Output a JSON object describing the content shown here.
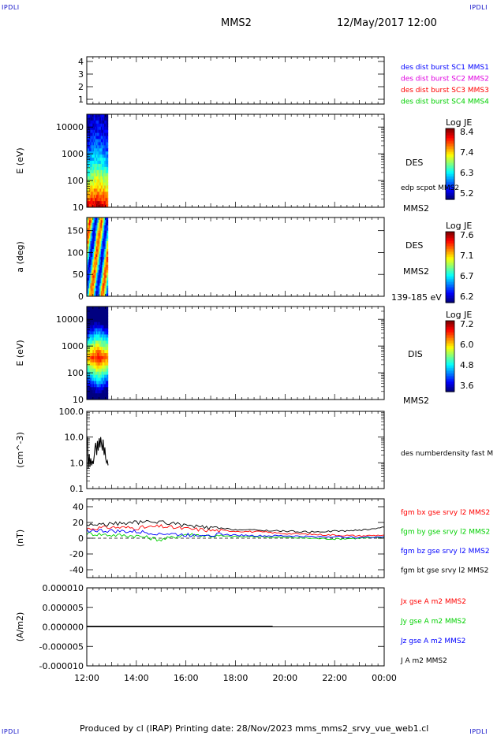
{
  "corners": {
    "top_left": "IPDLI",
    "top_right": "IPDLI",
    "bottom_left": "IPDLI",
    "bottom_right": "IPDLI"
  },
  "header": {
    "title": "MMS2",
    "date": "12/May/2017 12:00"
  },
  "footer": {
    "text": "Produced by cl (IRAP)   Printing date: 28/Nov/2023   mms_mms2_srvy_vue_web1.cl"
  },
  "colors": {
    "blue": "#0000ff",
    "magenta": "#e000e0",
    "red": "#ff0000",
    "green": "#00d000",
    "black": "#000000"
  },
  "chart_data": [
    {
      "type": "line",
      "panel": "availability",
      "yticks": [
        "1",
        "2",
        "3",
        "4"
      ],
      "legend": [
        {
          "text": "des dist burst SC1 MMS1",
          "color": "#0000ff"
        },
        {
          "text": "des dist burst SC2 MMS2",
          "color": "#e000e0"
        },
        {
          "text": "des dist burst SC3 MMS3",
          "color": "#ff0000"
        },
        {
          "text": "des dist burst SC4 MMS4",
          "color": "#00d000"
        }
      ]
    },
    {
      "type": "heatmap",
      "panel": "des_energy",
      "ylabel": "E (eV)",
      "scale": "log",
      "ylim": [
        10,
        30000
      ],
      "yticks": [
        "10",
        "100",
        "1000",
        "10000"
      ],
      "time_range": [
        "12:00",
        "12:50"
      ],
      "right_labels": [
        "DES",
        "edp scpot MMS2",
        "MMS2"
      ],
      "colorbar": {
        "title": "Log JE",
        "ticks": [
          "8.4",
          "7.4",
          "6.3",
          "5.2"
        ]
      }
    },
    {
      "type": "heatmap",
      "panel": "des_pitch",
      "ylabel": "a (deg)",
      "ylim": [
        0,
        180
      ],
      "yticks": [
        "0",
        "50",
        "100",
        "150"
      ],
      "time_range": [
        "12:00",
        "12:50"
      ],
      "right_labels": [
        "DES",
        "MMS2",
        "139-185 eV"
      ],
      "colorbar": {
        "title": "Log JE",
        "ticks": [
          "7.6",
          "7.1",
          "6.7",
          "6.2"
        ]
      }
    },
    {
      "type": "heatmap",
      "panel": "dis_energy",
      "ylabel": "E (eV)",
      "scale": "log",
      "ylim": [
        10,
        30000
      ],
      "yticks": [
        "10",
        "100",
        "1000",
        "10000"
      ],
      "time_range": [
        "12:00",
        "12:50"
      ],
      "right_labels": [
        "DIS",
        "MMS2"
      ],
      "colorbar": {
        "title": "Log JE",
        "ticks": [
          "7.2",
          "6.0",
          "4.8",
          "3.6"
        ]
      }
    },
    {
      "type": "line",
      "panel": "density",
      "ylabel": "(cm^-3)",
      "scale": "log",
      "ylim": [
        0.1,
        100
      ],
      "yticks": [
        "0.1",
        "1.0",
        "10.0",
        "100.0"
      ],
      "series": [
        {
          "name": "des numberdensity fast M",
          "color": "#000000",
          "x": [
            12.0,
            12.03,
            12.06,
            12.1,
            12.13,
            12.16,
            12.2,
            12.23,
            12.26,
            12.3,
            12.33,
            12.36,
            12.4,
            12.43,
            12.46,
            12.5,
            12.53,
            12.56,
            12.6,
            12.63,
            12.66,
            12.7,
            12.73,
            12.76,
            12.8,
            12.83,
            12.86
          ],
          "y": [
            11,
            9,
            0.6,
            2.2,
            0.7,
            1.5,
            0.8,
            1.2,
            0.9,
            1.8,
            4,
            6,
            2,
            7,
            3,
            9,
            4,
            10,
            5,
            3,
            8,
            2,
            4,
            1.5,
            1.0,
            1.2,
            0.8
          ]
        }
      ],
      "legend": [
        {
          "text": "des numberdensity fast M",
          "color": "#000000"
        }
      ]
    },
    {
      "type": "line",
      "panel": "magnetic_field",
      "ylabel": "(nT)",
      "ylim": [
        -50,
        50
      ],
      "yticks": [
        "-40",
        "-20",
        "0",
        "20",
        "40"
      ],
      "series": [
        {
          "name": "fgm bx gse srvy l2 MMS2",
          "color": "#ff0000",
          "x": [
            12,
            13,
            14,
            15,
            16,
            17,
            18,
            19,
            20,
            21,
            22,
            23,
            24
          ],
          "y": [
            12,
            14,
            13,
            15,
            12,
            10,
            9,
            8,
            6,
            5,
            4,
            3,
            4
          ]
        },
        {
          "name": "fgm by gse srvy l2 MMS2",
          "color": "#00d000",
          "x": [
            12,
            13,
            14,
            15,
            16,
            17,
            18,
            19,
            20,
            21,
            22,
            23,
            24
          ],
          "y": [
            6,
            4,
            3,
            -2,
            5,
            3,
            2,
            2,
            1,
            0,
            -1,
            0,
            1
          ]
        },
        {
          "name": "fgm bz gse srvy l2 MMS2",
          "color": "#0000ff",
          "x": [
            12,
            13,
            14,
            15,
            16,
            17,
            18,
            19,
            20,
            21,
            22,
            23,
            24
          ],
          "y": [
            10,
            9,
            8,
            6,
            4,
            5,
            4,
            3,
            3,
            2,
            2,
            1,
            2
          ]
        },
        {
          "name": "fgm bt gse srvy l2 MMS2",
          "color": "#000000",
          "x": [
            12,
            13,
            14,
            15,
            16,
            17,
            18,
            19,
            20,
            21,
            22,
            23,
            24
          ],
          "y": [
            17,
            18,
            20,
            21,
            16,
            13,
            11,
            10,
            9,
            8,
            9,
            10,
            14
          ]
        }
      ],
      "legend": [
        {
          "text": "fgm bx gse srvy l2 MMS2",
          "color": "#ff0000"
        },
        {
          "text": "fgm by gse srvy l2 MMS2",
          "color": "#00d000"
        },
        {
          "text": "fgm bz gse srvy l2 MMS2",
          "color": "#0000ff"
        },
        {
          "text": "fgm bt gse srvy l2 MMS2",
          "color": "#000000"
        }
      ]
    },
    {
      "type": "line",
      "panel": "current_density",
      "ylabel": "(A/m2)",
      "ylim": [
        -1e-05,
        1e-05
      ],
      "yticks": [
        "-0.000010",
        "-0.000005",
        "0.000000",
        "0.000005",
        "0.000010"
      ],
      "series": [
        {
          "name": "J A m2 MMS2",
          "color": "#000000",
          "x": [
            12,
            14,
            16,
            18,
            19.5
          ],
          "y": [
            0,
            0,
            0,
            0,
            0
          ]
        }
      ],
      "legend": [
        {
          "text": "Jx gse A m2 MMS2",
          "color": "#ff0000"
        },
        {
          "text": "Jy gse A m2 MMS2",
          "color": "#00d000"
        },
        {
          "text": "Jz gse A m2 MMS2",
          "color": "#0000ff"
        },
        {
          "text": "J A m2 MMS2",
          "color": "#000000"
        }
      ]
    }
  ],
  "time_axis": {
    "ticks": [
      "12:00",
      "14:00",
      "16:00",
      "18:00",
      "20:00",
      "22:00",
      "00:00"
    ],
    "range_hours": [
      12,
      24
    ]
  }
}
